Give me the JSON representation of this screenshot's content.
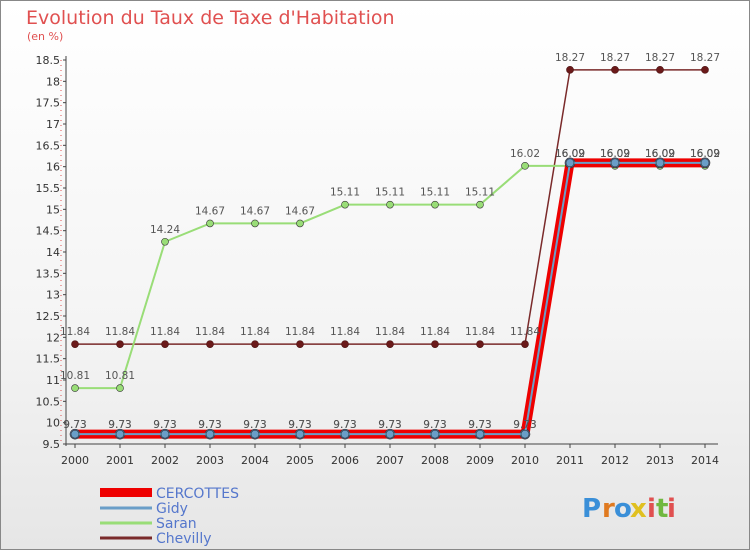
{
  "chart_data": {
    "type": "line",
    "title": "Evolution du Taux de Taxe d'Habitation",
    "subtitle": "(en %)",
    "xlabel": "",
    "ylabel": "",
    "x": [
      "2000",
      "2001",
      "2002",
      "2003",
      "2004",
      "2005",
      "2006",
      "2007",
      "2008",
      "2009",
      "2010",
      "2011",
      "2012",
      "2013",
      "2014"
    ],
    "ylim": [
      9.5,
      18.5
    ],
    "yticks": [
      "9.5",
      "10",
      "10.5",
      "11",
      "11.5",
      "12",
      "12.5",
      "13",
      "13.5",
      "14",
      "14.5",
      "15",
      "15.5",
      "16",
      "16.5",
      "17",
      "17.5",
      "18",
      "18.5"
    ],
    "grid": false,
    "legend_position": "bottom-left",
    "series": [
      {
        "name": "CERCOTTES",
        "color": "#ee0000",
        "values": [
          9.73,
          9.73,
          9.73,
          9.73,
          9.73,
          9.73,
          9.73,
          9.73,
          9.73,
          9.73,
          9.73,
          16.09,
          16.09,
          16.09,
          16.09
        ],
        "labels": [
          "9.73",
          "9.73",
          "9.73",
          "9.73",
          "9.73",
          "9.73",
          "9.73",
          "9.73",
          "9.73",
          "9.73",
          "9.73",
          "16.09",
          "16.09",
          "16.09",
          "16.09"
        ]
      },
      {
        "name": "Gidy",
        "color": "#6a9ec8",
        "values": [
          9.73,
          9.73,
          9.73,
          9.73,
          9.73,
          9.73,
          9.73,
          9.73,
          9.73,
          9.73,
          9.73,
          16.09,
          16.09,
          16.09,
          16.09
        ],
        "labels": [
          "9.73",
          "9.73",
          "9.73",
          "9.73",
          "9.73",
          "9.73",
          "9.73",
          "9.73",
          "9.73",
          "9.73",
          "9.73",
          "16.09",
          "16.09",
          "16.09",
          "16.09"
        ]
      },
      {
        "name": "Saran",
        "color": "#99dd77",
        "values": [
          10.81,
          10.81,
          14.24,
          14.67,
          14.67,
          14.67,
          15.11,
          15.11,
          15.11,
          15.11,
          16.02,
          16.02,
          16.02,
          16.02,
          16.02
        ],
        "labels": [
          "10.81",
          "10.81",
          "14.24",
          "14.67",
          "14.67",
          "14.67",
          "15.11",
          "15.11",
          "15.11",
          "15.11",
          "16.02",
          "16.02",
          "16.02",
          "16.02",
          "16.02"
        ]
      },
      {
        "name": "Chevilly",
        "color": "#7a2a2a",
        "values": [
          11.84,
          11.84,
          11.84,
          11.84,
          11.84,
          11.84,
          11.84,
          11.84,
          11.84,
          11.84,
          11.84,
          18.27,
          18.27,
          18.27,
          18.27
        ],
        "labels": [
          "11.84",
          "11.84",
          "11.84",
          "11.84",
          "11.84",
          "11.84",
          "11.84",
          "11.84",
          "11.84",
          "11.84",
          "11.84",
          "18.27",
          "18.27",
          "18.27",
          "18.27"
        ]
      }
    ]
  },
  "logo": {
    "text": "Proxiti",
    "letters": [
      "P",
      "r",
      "o",
      "x",
      "i",
      "t",
      "i"
    ],
    "colors": [
      "#3a8fd8",
      "#e07a20",
      "#3a8fd8",
      "#e0c020",
      "#e05050",
      "#70b840",
      "#e05050"
    ]
  }
}
